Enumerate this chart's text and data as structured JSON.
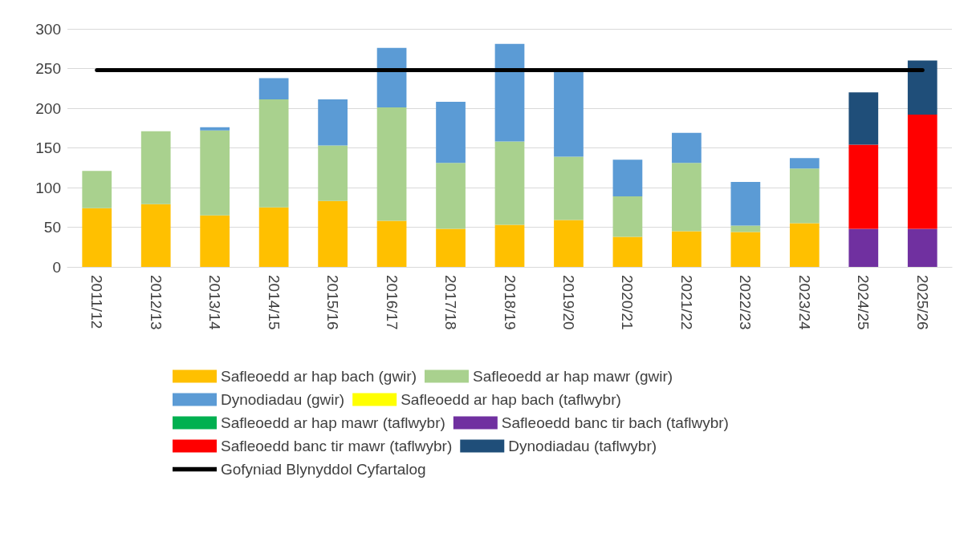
{
  "chart_data": {
    "type": "bar",
    "stacked": true,
    "categories": [
      "2011/12",
      "2012/13",
      "2013/14",
      "2014/15",
      "2015/16",
      "2016/17",
      "2017/18",
      "2018/19",
      "2019/20",
      "2020/21",
      "2021/22",
      "2022/23",
      "2023/24",
      "2024/25",
      "2025/26"
    ],
    "series": [
      {
        "name": "Safleoedd ar hap bach (gwir)",
        "color": "#ffc000",
        "values": [
          74,
          79,
          65,
          75,
          83,
          58,
          48,
          53,
          59,
          38,
          45,
          44,
          55,
          null,
          null
        ]
      },
      {
        "name": "Safleoedd ar hap mawr (gwir)",
        "color": "#a9d18e",
        "values": [
          47,
          92,
          107,
          136,
          70,
          143,
          83,
          105,
          80,
          51,
          86,
          8,
          69,
          null,
          null
        ]
      },
      {
        "name": "Dynodiadau (gwir)",
        "color": "#5b9bd5",
        "values": [
          null,
          null,
          4,
          27,
          58,
          75,
          77,
          123,
          108,
          46,
          38,
          55,
          13,
          null,
          null
        ]
      },
      {
        "name": "Safleoedd ar hap bach (taflwybr)",
        "color": "#ffff00",
        "values": [
          null,
          null,
          null,
          null,
          null,
          null,
          null,
          null,
          null,
          null,
          null,
          null,
          null,
          null,
          null
        ]
      },
      {
        "name": "Safleoedd ar hap mawr (taflwybr)",
        "color": "#00b050",
        "values": [
          null,
          null,
          null,
          null,
          null,
          null,
          null,
          null,
          null,
          null,
          null,
          null,
          null,
          null,
          null
        ]
      },
      {
        "name": "Safleoedd banc tir bach (taflwybr)",
        "color": "#7030a0",
        "values": [
          null,
          null,
          null,
          null,
          null,
          null,
          null,
          null,
          null,
          null,
          null,
          null,
          null,
          48,
          48
        ]
      },
      {
        "name": "Safleoedd banc tir mawr (taflwybr)",
        "color": "#ff0000",
        "values": [
          null,
          null,
          null,
          null,
          null,
          null,
          null,
          null,
          null,
          null,
          null,
          null,
          null,
          106,
          144
        ]
      },
      {
        "name": "Dynodiadau (taflwybr)",
        "color": "#1f4e79",
        "values": [
          null,
          null,
          null,
          null,
          null,
          null,
          null,
          null,
          null,
          null,
          null,
          null,
          null,
          66,
          68
        ]
      },
      {
        "name": "Gofyniad Blynyddol Cyfartalog",
        "color": "#000000",
        "type": "line",
        "values": [
          248,
          248,
          248,
          248,
          248,
          248,
          248,
          248,
          248,
          248,
          248,
          248,
          248,
          248,
          248
        ]
      }
    ],
    "ylim": [
      0,
      300
    ],
    "yticks": [
      0,
      50,
      100,
      150,
      200,
      250,
      300
    ],
    "grid": "y",
    "legend": "bottom",
    "marker": "none"
  }
}
